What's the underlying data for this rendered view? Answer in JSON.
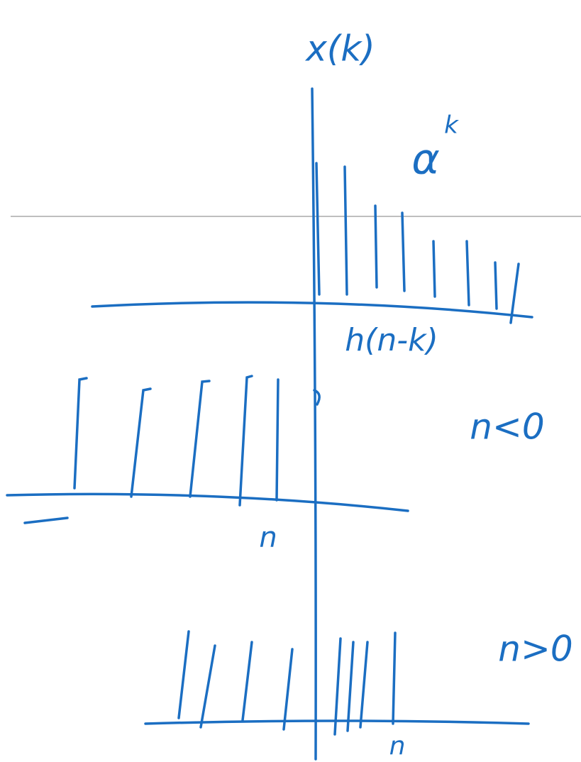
{
  "labels": {
    "axis_label": "x(k)",
    "exponential": "α",
    "exponent": "k",
    "kernel": "h(n-k)",
    "case_negative": "n<0",
    "n_marker_negative": "n",
    "case_positive": "n>0",
    "n_marker_positive": "n"
  }
}
